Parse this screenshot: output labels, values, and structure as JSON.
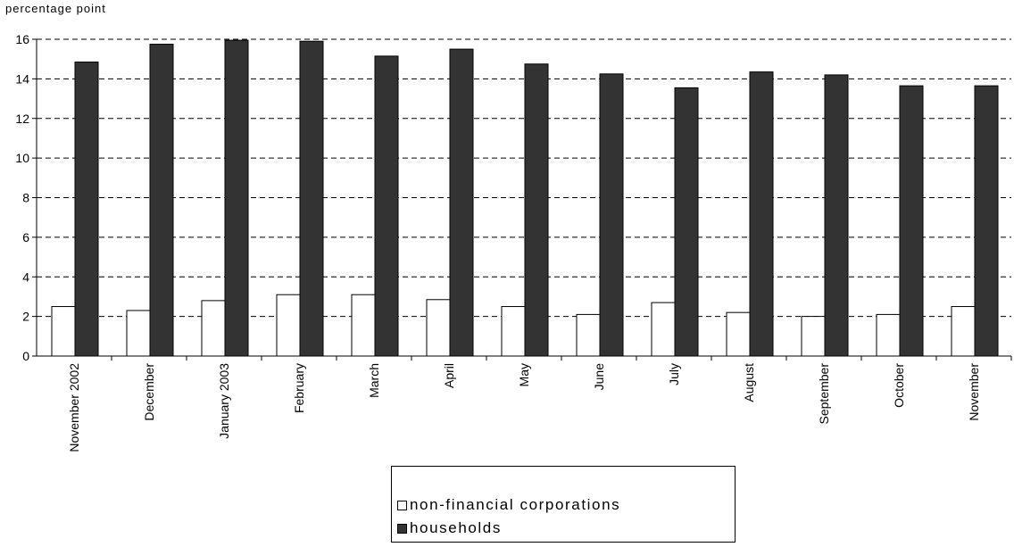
{
  "colors": {
    "nfc_fill": "#ffffff",
    "households_fill": "#333333",
    "axis": "#000000"
  },
  "chart_data": {
    "type": "bar",
    "ylabel": "percentage point",
    "xlabel": "",
    "ylim": [
      0,
      16
    ],
    "yticks": [
      0,
      2,
      4,
      6,
      8,
      10,
      12,
      14,
      16
    ],
    "grid": "horizontal dashed",
    "legend_position": "bottom-center",
    "categories": [
      "November 2002",
      "December",
      "January 2003",
      "February",
      "March",
      "April",
      "May",
      "June",
      "July",
      "August",
      "September",
      "October",
      "November"
    ],
    "series": [
      {
        "name": "non-financial corporations",
        "values": [
          2.5,
          2.3,
          2.8,
          3.1,
          3.1,
          2.85,
          2.5,
          2.1,
          2.7,
          2.2,
          2.0,
          2.1,
          2.5
        ]
      },
      {
        "name": "households",
        "values": [
          14.85,
          15.75,
          15.95,
          15.9,
          15.15,
          15.5,
          14.75,
          14.25,
          13.55,
          14.35,
          14.2,
          13.65,
          13.65
        ]
      }
    ]
  }
}
